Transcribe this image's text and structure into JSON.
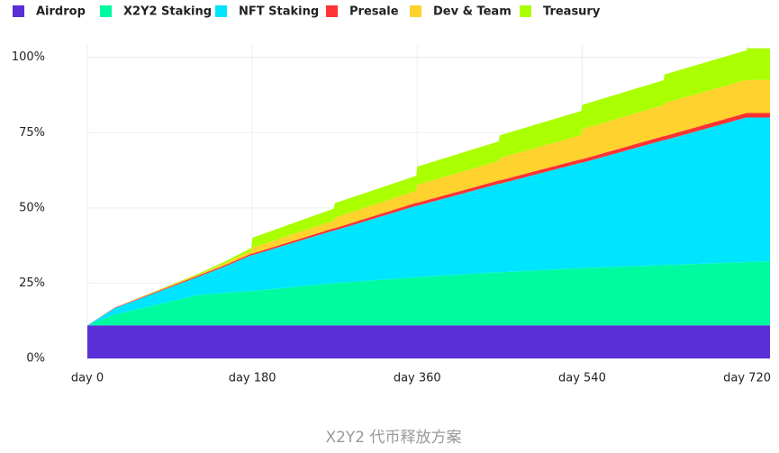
{
  "chart_data": {
    "type": "stacked_area",
    "caption": "X2Y2 代币释放方案",
    "x": [
      0,
      30,
      120,
      150,
      179,
      180,
      269,
      270,
      359,
      360,
      449,
      450,
      539,
      540,
      629,
      630,
      719,
      720,
      745
    ],
    "series": [
      {
        "name": "Airdrop",
        "color": "#5b2fd6",
        "values": [
          11,
          11,
          11,
          11,
          11,
          11,
          11,
          11,
          11,
          11,
          11,
          11,
          11,
          11,
          11,
          11,
          11,
          11,
          11
        ]
      },
      {
        "name": "X2Y2 Staking",
        "color": "#00fa9f",
        "values": [
          0,
          3.6,
          10,
          10.8,
          11.4,
          11.4,
          14,
          14,
          16,
          16,
          17.6,
          17.6,
          19,
          19,
          20,
          20,
          21,
          21,
          21.3
        ]
      },
      {
        "name": "NFT Staking",
        "color": "#00e5ff",
        "values": [
          0,
          2.1,
          6,
          8.7,
          11.9,
          11.9,
          17.5,
          17.5,
          23.7,
          23.7,
          29.4,
          29.4,
          35,
          35,
          41.5,
          41.5,
          48,
          48,
          47.7
        ]
      },
      {
        "name": "Presale",
        "color": "#ff3333",
        "values": [
          0,
          0.2,
          0.4,
          0.45,
          0.5,
          0.5,
          0.75,
          0.75,
          1,
          1,
          1.1,
          1.1,
          1.2,
          1.2,
          1.35,
          1.35,
          1.5,
          1.5,
          1.5
        ]
      },
      {
        "name": "Dev & Team",
        "color": "#ffd22e",
        "values": [
          0,
          0,
          0.3,
          0.6,
          1,
          2,
          2.5,
          3.5,
          4,
          6,
          6.5,
          7.5,
          8,
          10,
          10.3,
          11,
          11,
          11,
          11
        ]
      },
      {
        "name": "Treasury",
        "color": "#aaff00",
        "values": [
          0,
          0,
          0.3,
          0.6,
          0.9,
          3.3,
          4,
          4.8,
          5,
          6,
          6.5,
          7.5,
          8,
          8,
          8.3,
          9.5,
          9.8,
          10.5,
          10.5
        ]
      }
    ],
    "xlim": [
      0,
      745
    ],
    "xticks": [
      {
        "value": 0,
        "label": "day 0"
      },
      {
        "value": 180,
        "label": "day 180"
      },
      {
        "value": 360,
        "label": "day 360"
      },
      {
        "value": 540,
        "label": "day 540"
      },
      {
        "value": 720,
        "label": "day 720"
      }
    ],
    "ylim": [
      0,
      103.5
    ],
    "yticks": [
      {
        "value": 0,
        "label": "0%"
      },
      {
        "value": 25,
        "label": "25%"
      },
      {
        "value": 50,
        "label": "50%"
      },
      {
        "value": 75,
        "label": "75%"
      },
      {
        "value": 100,
        "label": "100%"
      }
    ],
    "grid": true
  }
}
